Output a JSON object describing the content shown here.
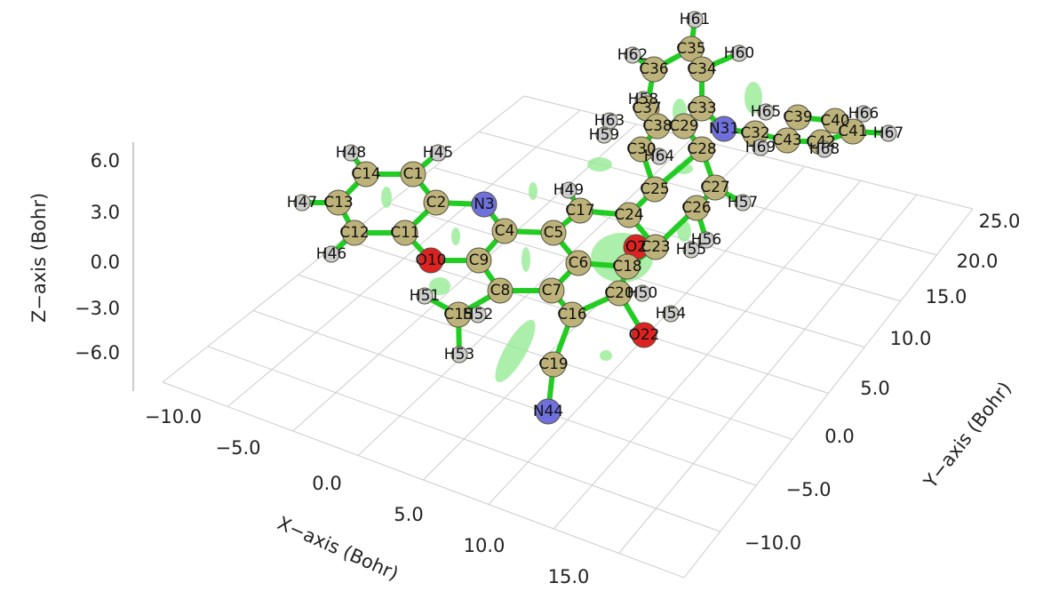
{
  "axes": {
    "x": {
      "title": "X−axis (Bohr)",
      "ticks": [
        "−10.0",
        "−5.0",
        "0.0",
        "5.0",
        "10.0",
        "15.0"
      ]
    },
    "y": {
      "title": "Y−axis (Bohr)",
      "ticks": [
        "−10.0",
        "−5.0",
        "0.0",
        "5.0",
        "10.0",
        "15.0",
        "20.0",
        "25.0"
      ]
    },
    "z": {
      "title": "Z−axis (Bohr)",
      "ticks": [
        "6.0",
        "3.0",
        "0.0",
        "−3.0",
        "−6.0"
      ]
    }
  },
  "atoms": [
    "H61",
    "H62",
    "C35",
    "H60",
    "C36",
    "C34",
    "H58",
    "C37",
    "C33",
    "H63",
    "C38",
    "C29",
    "N31",
    "H65",
    "C39",
    "C40",
    "H66",
    "H59",
    "C30",
    "H64",
    "C28",
    "C32",
    "C43",
    "C41",
    "H67",
    "H69",
    "C42",
    "H68",
    "H48",
    "H45",
    "C14",
    "C1",
    "C25",
    "C27",
    "H49",
    "H47",
    "C13",
    "C2",
    "N3",
    "C17",
    "C24",
    "C26",
    "H57",
    "C12",
    "C11",
    "C4",
    "C5",
    "O2",
    "C23",
    "H56",
    "H55",
    "H46",
    "O10",
    "C9",
    "C6",
    "C18",
    "C8",
    "C7",
    "C20",
    "H50",
    "H51",
    "C15",
    "H52",
    "C16",
    "H54",
    "O22",
    "H53",
    "C19",
    "N44"
  ]
}
